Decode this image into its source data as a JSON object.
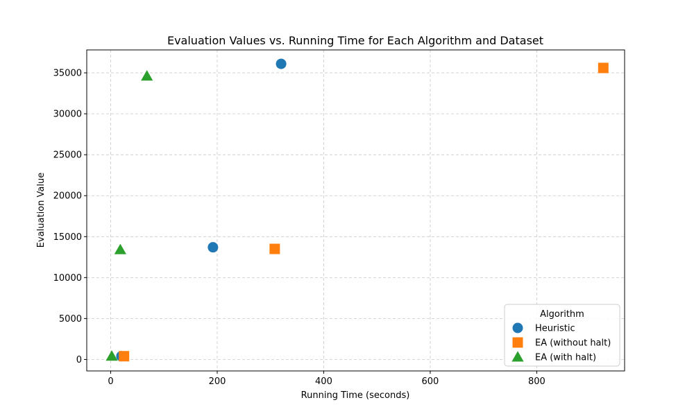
{
  "chart_data": {
    "type": "scatter",
    "title": "Evaluation Values vs. Running Time for Each Algorithm and Dataset",
    "xlabel": "Running Time (seconds)",
    "ylabel": "Evaluation Value",
    "xlim": [
      -45,
      965
    ],
    "ylim": [
      -1400,
      37800
    ],
    "xticks": [
      0,
      200,
      400,
      600,
      800
    ],
    "yticks": [
      0,
      5000,
      10000,
      15000,
      20000,
      25000,
      30000,
      35000
    ],
    "grid": true,
    "legend": {
      "title": "Algorithm",
      "placement": "bottom-right"
    },
    "series": [
      {
        "name": "Heuristic",
        "marker": "circle",
        "color": "#1f77b4",
        "points": [
          {
            "x": 20,
            "y": 400
          },
          {
            "x": 192,
            "y": 13700
          },
          {
            "x": 320,
            "y": 36100
          }
        ]
      },
      {
        "name": "EA (without halt)",
        "marker": "square",
        "color": "#ff7f0e",
        "points": [
          {
            "x": 25,
            "y": 400
          },
          {
            "x": 308,
            "y": 13500
          },
          {
            "x": 925,
            "y": 35600
          }
        ]
      },
      {
        "name": "EA (with halt)",
        "marker": "triangle",
        "color": "#2ca02c",
        "points": [
          {
            "x": 2,
            "y": 400
          },
          {
            "x": 18,
            "y": 13400
          },
          {
            "x": 68,
            "y": 34600
          }
        ]
      }
    ]
  }
}
